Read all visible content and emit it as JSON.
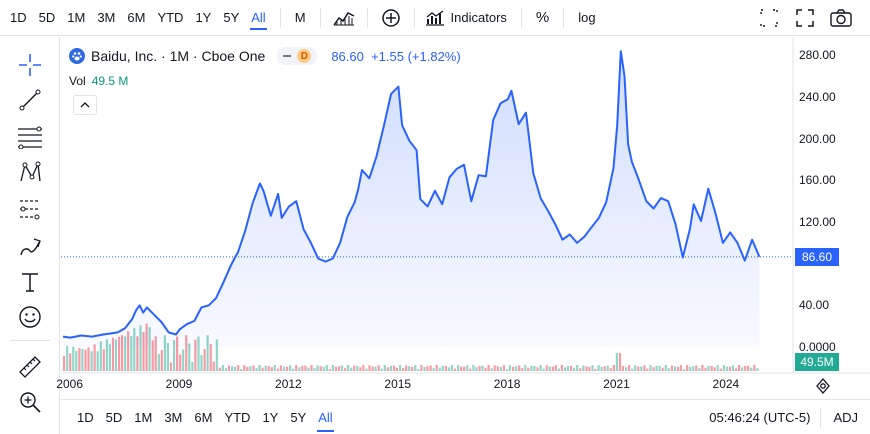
{
  "toolbar": {
    "ranges": [
      "1D",
      "5D",
      "1M",
      "3M",
      "6M",
      "YTD",
      "1Y",
      "5Y",
      "All"
    ],
    "active_range": "All",
    "interval": "M",
    "indicators_label": "Indicators",
    "percent_label": "%",
    "log_label": "log"
  },
  "legend": {
    "symbol": "Baidu, Inc. · 1M · Cboe One",
    "badge_letter": "D",
    "price_text": "86.60  +1.55 (+1.82%)",
    "vol_label": "Vol",
    "vol_value": "49.5 M"
  },
  "price_axis": {
    "ticks": [
      "280.00",
      "240.00",
      "200.00",
      "160.00",
      "120.00",
      "40.00",
      "0.0000"
    ],
    "last_price_label": "86.60",
    "volume_label": "49.5M"
  },
  "time_axis": {
    "ticks": [
      "2006",
      "2009",
      "2012",
      "2015",
      "2018",
      "2021",
      "2024"
    ]
  },
  "bottom": {
    "ranges": [
      "1D",
      "5D",
      "1M",
      "3M",
      "6M",
      "YTD",
      "1Y",
      "5Y",
      "All"
    ],
    "active_range": "All",
    "time": "05:46:24 (UTC-5)",
    "adj": "ADJ"
  },
  "colors": {
    "accent": "#2962ff",
    "line": "#2962ff",
    "volume_up": "#22ab94",
    "volume_down": "#f23645"
  },
  "chart_data": {
    "type": "area",
    "x_range": [
      2005.8,
      2025.0
    ],
    "ylim": [
      0,
      290
    ],
    "x": [
      2005.8,
      2006.0,
      2006.3,
      2006.6,
      2006.9,
      2007.1,
      2007.3,
      2007.5,
      2007.7,
      2007.8,
      2007.9,
      2008.0,
      2008.1,
      2008.3,
      2008.5,
      2008.7,
      2008.9,
      2009.0,
      2009.2,
      2009.4,
      2009.6,
      2009.8,
      2010.0,
      2010.2,
      2010.4,
      2010.5,
      2010.6,
      2010.8,
      2011.0,
      2011.2,
      2011.3,
      2011.5,
      2011.7,
      2011.8,
      2012.0,
      2012.2,
      2012.4,
      2012.6,
      2012.8,
      2013.0,
      2013.2,
      2013.4,
      2013.6,
      2013.8,
      2013.9,
      2014.0,
      2014.2,
      2014.4,
      2014.6,
      2014.8,
      2015.0,
      2015.1,
      2015.3,
      2015.5,
      2015.6,
      2015.8,
      2016.0,
      2016.2,
      2016.4,
      2016.6,
      2016.8,
      2017.0,
      2017.2,
      2017.4,
      2017.6,
      2017.8,
      2018.0,
      2018.1,
      2018.3,
      2018.5,
      2018.7,
      2018.9,
      2019.1,
      2019.3,
      2019.5,
      2019.7,
      2019.9,
      2020.1,
      2020.3,
      2020.5,
      2020.7,
      2020.9,
      2021.0,
      2021.1,
      2021.2,
      2021.3,
      2021.4,
      2021.6,
      2021.8,
      2022.0,
      2022.2,
      2022.4,
      2022.6,
      2022.8,
      2023.0,
      2023.1,
      2023.3,
      2023.5,
      2023.7,
      2023.9,
      2024.1,
      2024.3,
      2024.5,
      2024.7,
      2024.9
    ],
    "y": [
      10,
      9,
      11,
      10,
      12,
      13,
      14,
      18,
      27,
      35,
      40,
      33,
      38,
      31,
      24,
      14,
      12,
      17,
      22,
      25,
      38,
      40,
      47,
      62,
      78,
      85,
      91,
      112,
      138,
      157,
      150,
      126,
      147,
      124,
      135,
      140,
      113,
      100,
      85,
      82,
      85,
      100,
      125,
      139,
      152,
      170,
      162,
      183,
      212,
      243,
      250,
      213,
      198,
      189,
      142,
      135,
      150,
      137,
      163,
      171,
      175,
      140,
      165,
      164,
      218,
      234,
      238,
      246,
      214,
      225,
      167,
      143,
      131,
      118,
      103,
      108,
      100,
      106,
      115,
      124,
      139,
      172,
      213,
      284,
      260,
      195,
      178,
      160,
      140,
      133,
      143,
      140,
      118,
      86,
      114,
      137,
      121,
      152,
      128,
      100,
      110,
      100,
      83,
      103,
      86.6
    ],
    "volume_note": "volume histogram shown as bars beneath price"
  }
}
